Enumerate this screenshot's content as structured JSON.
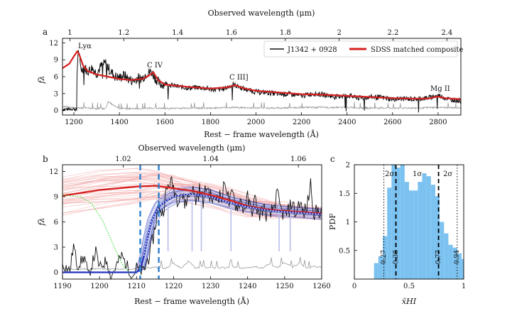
{
  "panels": {
    "a": {
      "label": "a",
      "top_axis_label": "Observed wavelength (μm)",
      "xlabel": "Rest − frame wavelength (Å)",
      "ylabel": "fλ",
      "legend": [
        "J1342 + 0928",
        "SDSS matched composite"
      ],
      "lines": [
        "Lyα",
        "C IV",
        "C III]",
        "Mg II"
      ]
    },
    "b": {
      "label": "b",
      "top_axis_label": "Observed wavelength (μm)",
      "xlabel": "Rest − frame wavelength (Å)",
      "ylabel": "fλ"
    },
    "c": {
      "label": "c",
      "xlabel": "x̄HI",
      "ylabel": "PDF",
      "annotations": [
        "2σ",
        "1σ",
        "2σ"
      ],
      "vline_values": [
        "0.27",
        "0.38",
        "0.77",
        "0.94"
      ]
    }
  },
  "colors": {
    "spectrum": "#111111",
    "composite": "#d62020",
    "error": "#999999",
    "blue_model": "#2233bb",
    "dashed_blue": "#2e7fcc",
    "hist": "#7cc2f0",
    "green": "#33dd33",
    "pale_red": "#f2a3a3",
    "pale_blue": "#b8bfe8"
  },
  "chart_data": [
    {
      "type": "line",
      "panel": "a",
      "xlim": [
        1150,
        2900
      ],
      "ylim": [
        -0.8,
        12.8
      ],
      "xticks": [
        1200,
        1400,
        1600,
        1800,
        2000,
        2200,
        2400,
        2600,
        2800
      ],
      "yticks": [
        0,
        3,
        6,
        9,
        12
      ],
      "top_xticks": [
        1,
        1.2,
        1.4,
        1.6,
        1.8,
        2,
        2.2,
        2.4
      ],
      "top_scale": 0.0008455,
      "series": [
        {
          "name": "SDSS matched composite",
          "x": [
            1150,
            1180,
            1200,
            1215,
            1225,
            1240,
            1260,
            1300,
            1350,
            1400,
            1450,
            1500,
            1530,
            1549,
            1570,
            1600,
            1700,
            1800,
            1870,
            1909,
            1940,
            2000,
            2100,
            2200,
            2300,
            2400,
            2500,
            2600,
            2700,
            2760,
            2798,
            2830,
            2900
          ],
          "y": [
            7.5,
            8.3,
            9.6,
            10.5,
            9.8,
            8.0,
            7.0,
            6.4,
            6.0,
            5.6,
            5.4,
            5.6,
            6.2,
            6.8,
            5.4,
            4.6,
            4.2,
            3.9,
            4.1,
            4.5,
            4.0,
            3.5,
            3.2,
            2.9,
            2.8,
            2.6,
            2.4,
            2.2,
            2.1,
            2.15,
            2.5,
            2.2,
            2.0
          ]
        },
        {
          "name": "J1342 + 0928",
          "x": [
            1150,
            1200,
            1212,
            1214,
            1218,
            1222,
            1228,
            1235,
            1245,
            1260,
            1280,
            1300,
            1320,
            1340,
            1360,
            1380,
            1400,
            1420,
            1440,
            1460,
            1480,
            1500,
            1520,
            1540,
            1560,
            1580,
            1600,
            1650,
            1700,
            1750,
            1800,
            1850,
            1900,
            1950,
            2000,
            2050,
            2100,
            2150,
            2200,
            2250,
            2300,
            2350,
            2400,
            2450,
            2500,
            2550,
            2600,
            2650,
            2700,
            2750,
            2800,
            2850,
            2900
          ],
          "y": [
            0.2,
            0.3,
            0.1,
            6.5,
            10.2,
            10.3,
            8.0,
            7.2,
            7.8,
            6.9,
            7.6,
            6.6,
            7.9,
            8.4,
            7.0,
            6.1,
            5.8,
            6.3,
            5.6,
            5.2,
            5.8,
            5.7,
            6.6,
            6.9,
            5.6,
            4.6,
            4.8,
            4.3,
            4.0,
            4.1,
            3.8,
            3.7,
            4.6,
            3.8,
            3.3,
            3.2,
            2.9,
            2.9,
            2.6,
            3.0,
            2.8,
            2.4,
            2.7,
            2.2,
            2.4,
            2.3,
            2.0,
            2.1,
            2.0,
            2.2,
            2.7,
            2.0,
            1.7
          ]
        },
        {
          "name": "error",
          "x": [
            1150,
            1200,
            1250,
            1300,
            1340,
            1350,
            1400,
            1450,
            1500,
            1550,
            1600,
            1700,
            1800,
            1900,
            2000,
            2100,
            2200,
            2300,
            2400,
            2500,
            2600,
            2700,
            2800,
            2900
          ],
          "y": [
            0.6,
            0.3,
            0.3,
            0.2,
            0.2,
            1.4,
            0.2,
            0.2,
            0.2,
            0.3,
            0.2,
            0.3,
            0.3,
            0.4,
            0.3,
            0.3,
            0.4,
            0.4,
            0.4,
            0.3,
            0.3,
            0.3,
            0.4,
            0.3
          ]
        }
      ]
    },
    {
      "type": "line",
      "panel": "b",
      "xlim": [
        1190,
        1260
      ],
      "ylim": [
        -0.8,
        12.8
      ],
      "xticks": [
        1190,
        1200,
        1210,
        1220,
        1230,
        1240,
        1250,
        1260
      ],
      "yticks": [
        0,
        3,
        6,
        9,
        12
      ],
      "top_xticks": [
        1.02,
        1.04,
        1.06
      ],
      "top_scale": 0.0008455,
      "dashed_lines": [
        1211,
        1216
      ],
      "series": [
        {
          "name": "composite",
          "x": [
            1190,
            1200,
            1210,
            1215,
            1220,
            1225,
            1230,
            1235,
            1240,
            1245,
            1250,
            1260
          ],
          "y": [
            9.1,
            9.8,
            10.2,
            10.3,
            10.0,
            9.7,
            9.2,
            8.6,
            7.9,
            7.5,
            7.3,
            7.0
          ]
        },
        {
          "name": "damped model",
          "x": [
            1190,
            1208,
            1210,
            1211,
            1212,
            1213,
            1214,
            1215,
            1216,
            1218,
            1220,
            1222,
            1225,
            1230,
            1235,
            1240,
            1245,
            1250,
            1260
          ],
          "y": [
            0,
            0,
            0,
            0.4,
            2.0,
            4.2,
            6.0,
            7.0,
            7.8,
            8.5,
            9.0,
            9.2,
            9.3,
            9.0,
            8.3,
            7.8,
            7.4,
            7.2,
            6.9
          ]
        },
        {
          "name": "green",
          "x": [
            1190,
            1195,
            1198,
            1201,
            1203,
            1205,
            1206.5,
            1208
          ],
          "y": [
            9.2,
            9.0,
            8.1,
            6.0,
            4.0,
            2.0,
            0.7,
            0.0
          ]
        },
        {
          "name": "J1342 + 0928",
          "x": [
            1190,
            1192,
            1193,
            1194,
            1196,
            1197,
            1199,
            1200,
            1202,
            1203,
            1205,
            1206,
            1208,
            1209,
            1210,
            1211,
            1212,
            1213,
            1214,
            1215,
            1216,
            1217,
            1218,
            1219,
            1220,
            1221,
            1222,
            1223,
            1224,
            1225,
            1226,
            1227,
            1228,
            1229,
            1230,
            1231,
            1232,
            1233,
            1234,
            1235,
            1236,
            1237,
            1238,
            1239,
            1240,
            1241,
            1242,
            1243,
            1244,
            1245,
            1246,
            1247,
            1248,
            1249,
            1250,
            1251,
            1252,
            1253,
            1254,
            1255,
            1256,
            1257,
            1258,
            1259,
            1260
          ],
          "y": [
            1.0,
            0.2,
            3.2,
            0.8,
            1.8,
            -0.5,
            2.5,
            0.5,
            1.5,
            -0.6,
            1.2,
            2.0,
            0.3,
            -0.4,
            0.6,
            0.1,
            0.2,
            1.5,
            3.0,
            5.5,
            8.0,
            7.0,
            9.5,
            10.8,
            10.2,
            8.8,
            9.6,
            8.2,
            9.0,
            10.0,
            8.6,
            9.8,
            8.5,
            10.4,
            9.0,
            8.5,
            9.4,
            8.7,
            11.0,
            8.2,
            9.3,
            7.8,
            8.6,
            7.5,
            8.8,
            7.2,
            8.6,
            6.8,
            7.6,
            7.0,
            6.6,
            7.8,
            9.2,
            7.4,
            6.8,
            7.2,
            8.4,
            6.8,
            8.5,
            7.0,
            7.6,
            10.6,
            6.8,
            7.4,
            7.2
          ]
        },
        {
          "name": "error",
          "x": [
            1190,
            1205,
            1210,
            1212,
            1215,
            1218,
            1220,
            1222,
            1224,
            1226,
            1228,
            1230,
            1232,
            1234,
            1236,
            1238,
            1240,
            1242,
            1244,
            1246,
            1248,
            1250,
            1252,
            1254,
            1256,
            1258,
            1260
          ],
          "y": [
            0.3,
            0.3,
            0.3,
            0.4,
            0.5,
            0.4,
            1.0,
            0.4,
            1.2,
            0.4,
            0.6,
            0.4,
            0.5,
            0.4,
            0.6,
            0.4,
            0.4,
            0.6,
            0.4,
            1.0,
            0.4,
            1.1,
            0.5,
            1.0,
            0.4,
            0.6,
            0.5
          ]
        }
      ]
    },
    {
      "type": "bar",
      "panel": "c",
      "xlim": [
        0,
        1
      ],
      "ylim": [
        0,
        2.0
      ],
      "xticks": [
        0,
        0.5,
        1.0
      ],
      "yticks": [
        0.5,
        1.0,
        1.5,
        2.0
      ],
      "bin_edges": [
        0.18,
        0.22,
        0.26,
        0.3,
        0.34,
        0.38,
        0.42,
        0.46,
        0.5,
        0.54,
        0.58,
        0.62,
        0.66,
        0.7,
        0.74,
        0.78,
        0.82,
        0.86,
        0.9,
        0.94,
        0.98,
        1.0
      ],
      "values": [
        0.28,
        0.4,
        0.75,
        1.6,
        2.0,
        1.95,
        2.0,
        1.7,
        1.55,
        1.55,
        1.7,
        1.85,
        1.8,
        1.65,
        1.45,
        1.0,
        0.8,
        0.6,
        0.55,
        0.45,
        0.35
      ],
      "vlines": [
        0.27,
        0.38,
        0.77,
        0.94
      ]
    }
  ]
}
